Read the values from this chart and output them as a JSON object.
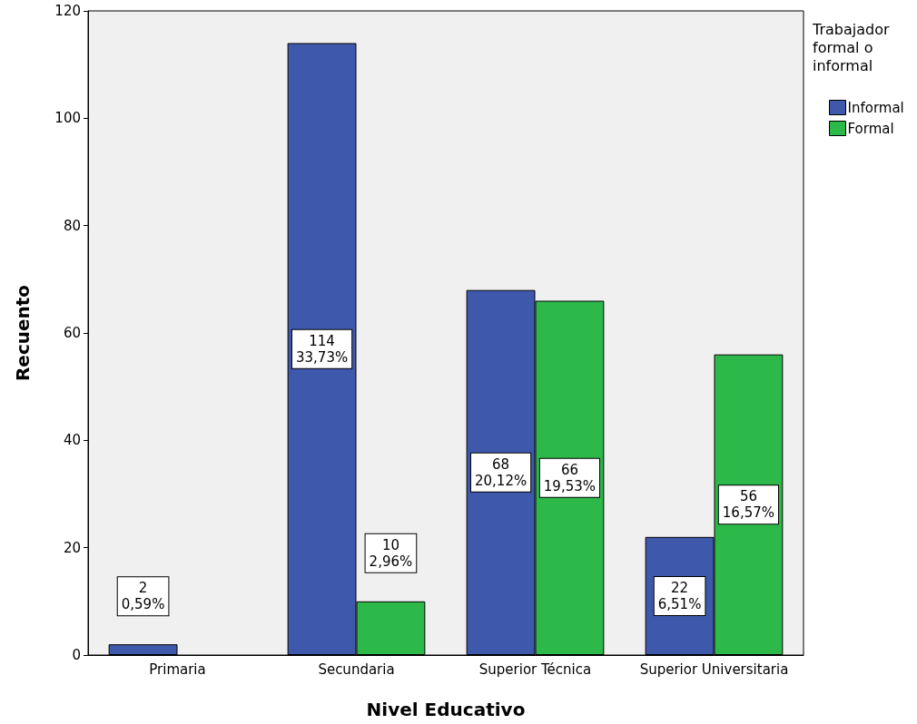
{
  "chart_data": {
    "type": "bar",
    "xlabel": "Nivel Educativo",
    "ylabel": "Recuento",
    "legend_title": "Trabajador\nformal o\ninformal",
    "categories": [
      "Primaria",
      "Secundaria",
      "Superior Técnica",
      "Superior Universitaria"
    ],
    "series": [
      {
        "name": "Informal",
        "color": "#3e58ac",
        "values": [
          2,
          114,
          68,
          22
        ],
        "value_labels": [
          "2\n0,59%",
          "114\n33,73%",
          "68\n20,12%",
          "22\n6,51%"
        ]
      },
      {
        "name": "Formal",
        "color": "#2db84a",
        "values": [
          null,
          10,
          66,
          56
        ],
        "value_labels": [
          null,
          "10\n2,96%",
          "66\n19,53%",
          "56\n16,57%"
        ]
      }
    ],
    "ylim": [
      0,
      120
    ],
    "yticks": [
      0,
      20,
      40,
      60,
      80,
      100,
      120
    ],
    "grid": false,
    "legend": "top right"
  }
}
